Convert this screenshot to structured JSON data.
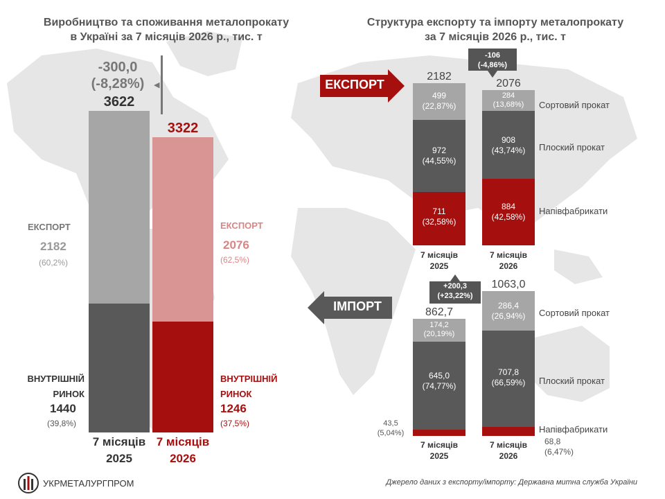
{
  "colors": {
    "grey_light": "#a6a6a6",
    "grey_dark": "#595959",
    "red": "#a5100f",
    "pink": "#d99594",
    "map": "#e6e6e6"
  },
  "left": {
    "title": "Виробництво та споживання металопрокату\nв Україні за 7 місяців 2026 р., тис. т",
    "change_value": "-300,0",
    "change_pct": "(-8,28%)",
    "bar1": {
      "total": "3622",
      "period": "7 місяців\n2025",
      "export_label": "ЕКСПОРТ",
      "export_value": "2182",
      "export_pct": "(60,2%)",
      "domestic_label": "ВНУТРІШНІЙ\nРИНОК",
      "domestic_value": "1440",
      "domestic_pct": "(39,8%)"
    },
    "bar2": {
      "total": "3322",
      "period": "7 місяців\n2026",
      "export_label": "ЕКСПОРТ",
      "export_value": "2076",
      "export_pct": "(62,5%)",
      "domestic_label": "ВНУТРІШНІЙ\nРИНОК",
      "domestic_value": "1246",
      "domestic_pct": "(37,5%)"
    }
  },
  "right": {
    "title": "Структура експорту та імпорту металопрокату\nза 7 місяців 2026 р., тис. т",
    "export_arrow": "ЕКСПОРТ",
    "import_arrow": "ІМПОРТ",
    "export_change": "-106\n(-4,86%)",
    "import_change": "+200,3\n(+23,22%)",
    "categories": [
      "Сортовий прокат",
      "Плоский прокат",
      "Напівфабрикати"
    ],
    "export_2025": {
      "total": "2182",
      "period": "7 місяців\n2025",
      "sort": "499\n(22,87%)",
      "flat": "972\n(44,55%)",
      "semi": "711\n(32,58%)"
    },
    "export_2026": {
      "total": "2076",
      "period": "7 місяців\n2026",
      "sort": "284\n(13,68%)",
      "flat": "908\n(43,74%)",
      "semi": "884\n(42,58%)"
    },
    "import_2025": {
      "total": "862,7",
      "period": "7 місяців\n2025",
      "sort": "174,2\n(20,19%)",
      "flat": "645,0\n(74,77%)",
      "semi": "43,5\n(5,04%)"
    },
    "import_2026": {
      "total": "1063,0",
      "period": "7 місяців\n2026",
      "sort": "286,4\n(26,94%)",
      "flat": "707,8\n(66,59%)",
      "semi": "68,8\n(6,47%)"
    }
  },
  "logo_text": "УКРМЕТАЛУРГПРОМ",
  "source": "Джерело даних з експорту/імпорту:  Державна митна служба  України",
  "chart_data": [
    {
      "type": "bar",
      "stacked": true,
      "title": "Виробництво та споживання металопрокату в Україні за 7 місяців 2026 р., тис. т",
      "categories": [
        "7 місяців 2025",
        "7 місяців 2026"
      ],
      "series": [
        {
          "name": "ЕКСПОРТ",
          "values": [
            2182,
            2076
          ]
        },
        {
          "name": "ВНУТРІШНІЙ РИНОК",
          "values": [
            1440,
            1246
          ]
        }
      ],
      "totals": [
        3622,
        3322
      ]
    },
    {
      "type": "bar",
      "stacked": true,
      "title": "Структура експорту та імпорту металопрокату за 7 місяців 2026 р., тис. т",
      "subset": "ЕКСПОРТ",
      "categories": [
        "7 місяців 2025",
        "7 місяців 2026"
      ],
      "series": [
        {
          "name": "Сортовий прокат",
          "values": [
            499,
            284
          ]
        },
        {
          "name": "Плоский прокат",
          "values": [
            972,
            908
          ]
        },
        {
          "name": "Напівфабрикати",
          "values": [
            711,
            884
          ]
        }
      ],
      "totals": [
        2182,
        2076
      ]
    },
    {
      "type": "bar",
      "stacked": true,
      "subset": "ІМПОРТ",
      "categories": [
        "7 місяців 2025",
        "7 місяців 2026"
      ],
      "series": [
        {
          "name": "Сортовий прокат",
          "values": [
            174.2,
            286.4
          ]
        },
        {
          "name": "Плоский прокат",
          "values": [
            645.0,
            707.8
          ]
        },
        {
          "name": "Напівфабрикати",
          "values": [
            43.5,
            68.8
          ]
        }
      ],
      "totals": [
        862.7,
        1063.0
      ]
    }
  ]
}
